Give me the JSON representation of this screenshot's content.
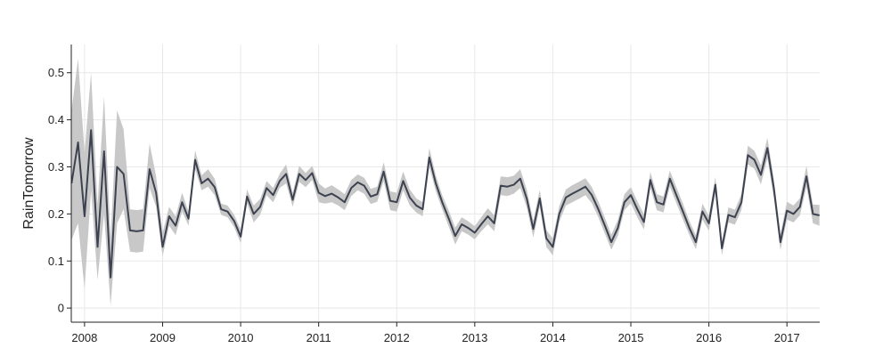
{
  "chart_data": {
    "type": "line",
    "xlabel": "",
    "ylabel": "RainTomorrow",
    "xlim": [
      2007.83,
      2017.42
    ],
    "ylim": [
      -0.03,
      0.56
    ],
    "grid": true,
    "x_ticks": [
      {
        "value": 2008,
        "label": "2008"
      },
      {
        "value": 2009,
        "label": "2009"
      },
      {
        "value": 2010,
        "label": "2010"
      },
      {
        "value": 2011,
        "label": "2011"
      },
      {
        "value": 2012,
        "label": "2012"
      },
      {
        "value": 2013,
        "label": "2013"
      },
      {
        "value": 2014,
        "label": "2014"
      },
      {
        "value": 2015,
        "label": "2015"
      },
      {
        "value": 2016,
        "label": "2016"
      },
      {
        "value": 2017,
        "label": "2017"
      }
    ],
    "y_ticks": [
      {
        "value": 0,
        "label": "0"
      },
      {
        "value": 0.1,
        "label": "0.1"
      },
      {
        "value": 0.2,
        "label": "0.2"
      },
      {
        "value": 0.3,
        "label": "0.3"
      },
      {
        "value": 0.4,
        "label": "0.4"
      },
      {
        "value": 0.5,
        "label": "0.5"
      }
    ],
    "colors": {
      "line": "#3d4250",
      "band": "#c8c8c8",
      "grid": "#e8e8e8",
      "axis": "#222222"
    },
    "series": [
      {
        "x": [
          2007.833,
          2007.917,
          2008.0,
          2008.083,
          2008.167,
          2008.25,
          2008.333,
          2008.417,
          2008.5,
          2008.583,
          2008.667,
          2008.75,
          2008.833,
          2008.917,
          2009.0,
          2009.083,
          2009.167,
          2009.25,
          2009.333,
          2009.417,
          2009.5,
          2009.583,
          2009.667,
          2009.75,
          2009.833,
          2009.917,
          2010.0,
          2010.083,
          2010.167,
          2010.25,
          2010.333,
          2010.417,
          2010.5,
          2010.583,
          2010.667,
          2010.75,
          2010.833,
          2010.917,
          2011.0,
          2011.083,
          2011.167,
          2011.25,
          2011.333,
          2011.417,
          2011.5,
          2011.583,
          2011.667,
          2011.75,
          2011.833,
          2011.917,
          2012.0,
          2012.083,
          2012.167,
          2012.25,
          2012.333,
          2012.417,
          2012.5,
          2012.583,
          2012.667,
          2012.75,
          2012.833,
          2012.917,
          2013.0,
          2013.083,
          2013.167,
          2013.25,
          2013.333,
          2013.417,
          2013.5,
          2013.583,
          2013.667,
          2013.75,
          2013.833,
          2013.917,
          2014.0,
          2014.083,
          2014.167,
          2014.25,
          2014.333,
          2014.417,
          2014.5,
          2014.583,
          2014.667,
          2014.75,
          2014.833,
          2014.917,
          2015.0,
          2015.083,
          2015.167,
          2015.25,
          2015.333,
          2015.417,
          2015.5,
          2015.583,
          2015.667,
          2015.75,
          2015.833,
          2015.917,
          2016.0,
          2016.083,
          2016.167,
          2016.25,
          2016.333,
          2016.417,
          2016.5,
          2016.583,
          2016.667,
          2016.75,
          2016.833,
          2016.917,
          2017.0,
          2017.083,
          2017.167,
          2017.25,
          2017.333,
          2017.417
        ],
        "y": [
          0.265,
          0.352,
          0.195,
          0.378,
          0.13,
          0.333,
          0.065,
          0.3,
          0.285,
          0.165,
          0.163,
          0.165,
          0.295,
          0.245,
          0.13,
          0.195,
          0.175,
          0.225,
          0.19,
          0.315,
          0.265,
          0.275,
          0.257,
          0.21,
          0.205,
          0.185,
          0.152,
          0.237,
          0.2,
          0.215,
          0.255,
          0.24,
          0.27,
          0.285,
          0.23,
          0.285,
          0.272,
          0.287,
          0.245,
          0.238,
          0.243,
          0.235,
          0.225,
          0.255,
          0.267,
          0.26,
          0.237,
          0.242,
          0.29,
          0.228,
          0.225,
          0.27,
          0.235,
          0.218,
          0.21,
          0.32,
          0.265,
          0.225,
          0.19,
          0.153,
          0.178,
          0.17,
          0.16,
          0.178,
          0.195,
          0.18,
          0.26,
          0.258,
          0.262,
          0.275,
          0.232,
          0.168,
          0.233,
          0.148,
          0.13,
          0.2,
          0.235,
          0.243,
          0.25,
          0.258,
          0.24,
          0.21,
          0.175,
          0.14,
          0.17,
          0.225,
          0.24,
          0.21,
          0.183,
          0.272,
          0.225,
          0.22,
          0.275,
          0.24,
          0.205,
          0.17,
          0.14,
          0.205,
          0.18,
          0.262,
          0.127,
          0.198,
          0.193,
          0.225,
          0.325,
          0.315,
          0.283,
          0.34,
          0.253,
          0.14,
          0.207,
          0.2,
          0.215,
          0.28,
          0.2,
          0.197
        ],
        "lower": [
          0.145,
          0.18,
          0.04,
          0.25,
          0.06,
          0.2,
          0.005,
          0.18,
          0.21,
          0.12,
          0.118,
          0.12,
          0.255,
          0.215,
          0.11,
          0.175,
          0.155,
          0.205,
          0.175,
          0.295,
          0.25,
          0.258,
          0.24,
          0.198,
          0.193,
          0.172,
          0.138,
          0.222,
          0.182,
          0.198,
          0.24,
          0.225,
          0.255,
          0.265,
          0.215,
          0.268,
          0.257,
          0.272,
          0.225,
          0.222,
          0.225,
          0.218,
          0.208,
          0.238,
          0.25,
          0.243,
          0.221,
          0.226,
          0.27,
          0.208,
          0.205,
          0.25,
          0.218,
          0.203,
          0.195,
          0.3,
          0.248,
          0.21,
          0.173,
          0.135,
          0.163,
          0.156,
          0.146,
          0.163,
          0.178,
          0.163,
          0.24,
          0.238,
          0.243,
          0.255,
          0.213,
          0.15,
          0.215,
          0.13,
          0.112,
          0.183,
          0.218,
          0.225,
          0.232,
          0.24,
          0.223,
          0.193,
          0.158,
          0.124,
          0.153,
          0.208,
          0.223,
          0.193,
          0.167,
          0.255,
          0.208,
          0.203,
          0.258,
          0.223,
          0.188,
          0.155,
          0.125,
          0.188,
          0.164,
          0.245,
          0.112,
          0.182,
          0.177,
          0.208,
          0.305,
          0.296,
          0.263,
          0.318,
          0.233,
          0.123,
          0.188,
          0.182,
          0.197,
          0.258,
          0.18,
          0.175
        ],
        "upper": [
          0.42,
          0.53,
          0.33,
          0.5,
          0.22,
          0.45,
          0.15,
          0.42,
          0.38,
          0.21,
          0.208,
          0.21,
          0.35,
          0.28,
          0.16,
          0.215,
          0.195,
          0.245,
          0.205,
          0.335,
          0.282,
          0.295,
          0.275,
          0.222,
          0.218,
          0.198,
          0.167,
          0.252,
          0.218,
          0.232,
          0.27,
          0.255,
          0.285,
          0.305,
          0.245,
          0.302,
          0.287,
          0.302,
          0.265,
          0.254,
          0.261,
          0.252,
          0.242,
          0.272,
          0.284,
          0.277,
          0.253,
          0.258,
          0.31,
          0.248,
          0.245,
          0.29,
          0.252,
          0.233,
          0.225,
          0.34,
          0.282,
          0.24,
          0.207,
          0.171,
          0.193,
          0.184,
          0.174,
          0.193,
          0.212,
          0.197,
          0.28,
          0.278,
          0.281,
          0.295,
          0.251,
          0.186,
          0.251,
          0.166,
          0.148,
          0.217,
          0.252,
          0.261,
          0.268,
          0.276,
          0.257,
          0.227,
          0.192,
          0.156,
          0.187,
          0.242,
          0.257,
          0.227,
          0.199,
          0.289,
          0.242,
          0.237,
          0.292,
          0.257,
          0.222,
          0.185,
          0.155,
          0.222,
          0.196,
          0.279,
          0.142,
          0.214,
          0.209,
          0.242,
          0.345,
          0.334,
          0.303,
          0.362,
          0.273,
          0.157,
          0.226,
          0.218,
          0.233,
          0.302,
          0.22,
          0.219
        ]
      }
    ]
  }
}
